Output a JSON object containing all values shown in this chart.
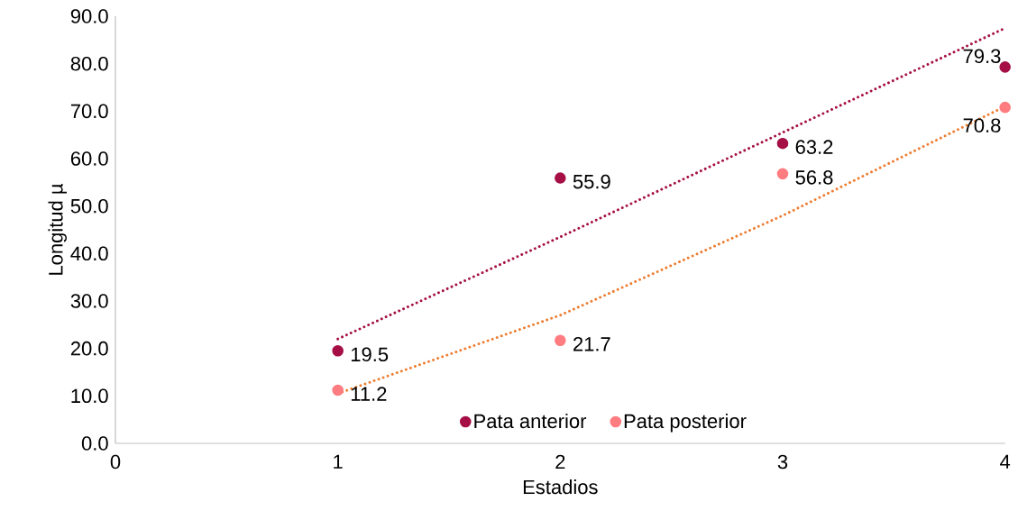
{
  "chart_data": {
    "type": "scatter",
    "xlabel": "Estadios",
    "ylabel": "Longitud µ",
    "xlim": [
      0,
      4
    ],
    "ylim": [
      0,
      90
    ],
    "xticks": [
      0,
      1,
      2,
      3,
      4
    ],
    "yticks": [
      {
        "value": 0,
        "label": "0.0"
      },
      {
        "value": 10,
        "label": "10.0"
      },
      {
        "value": 20,
        "label": "20.0"
      },
      {
        "value": 30,
        "label": "30.0"
      },
      {
        "value": 40,
        "label": "40.0"
      },
      {
        "value": 50,
        "label": "50.0"
      },
      {
        "value": 60,
        "label": "60.0"
      },
      {
        "value": 70,
        "label": "70.0"
      },
      {
        "value": 80,
        "label": "80.0"
      },
      {
        "value": 90,
        "label": "90.0"
      }
    ],
    "grid": false,
    "legend": "bottom",
    "marker": "circle",
    "series": [
      {
        "name": "Pata anterior",
        "color": "#a50f45",
        "x": [
          1,
          2,
          3,
          4
        ],
        "values": [
          19.5,
          55.9,
          63.2,
          79.3
        ],
        "value_labels": [
          "19.5",
          "55.9",
          "63.2",
          "79.3"
        ]
      },
      {
        "name": "Pata posterior",
        "color": "#ff7c80",
        "x": [
          1,
          2,
          3,
          4
        ],
        "values": [
          11.2,
          21.7,
          56.8,
          70.8
        ],
        "value_labels": [
          "11.2",
          "21.7",
          "56.8",
          "70.8"
        ]
      },
      {
        "type": "line",
        "color": "#a50f45",
        "marker": "none",
        "line_style": "dotted",
        "x": [
          1,
          2,
          3,
          4
        ],
        "values": [
          22,
          43.5,
          65.5,
          87.5
        ]
      },
      {
        "type": "line",
        "color": "#ed7d31",
        "marker": "none",
        "line_style": "dotted",
        "x": [
          1,
          2,
          3,
          4
        ],
        "values": [
          10.5,
          27,
          48,
          71
        ]
      }
    ]
  }
}
